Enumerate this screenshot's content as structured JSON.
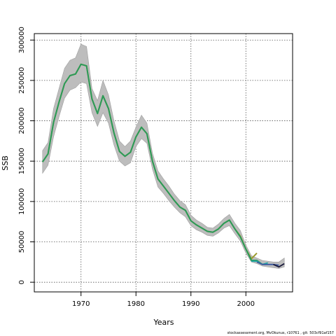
{
  "chart_data": {
    "type": "line",
    "title": "",
    "xlabel": "Years",
    "ylabel": "SSB",
    "xlim": [
      1961.5,
      2008.5
    ],
    "ylim": [
      -12000,
      308000
    ],
    "grid": true,
    "x_ticks": [
      1970,
      1980,
      1990,
      2000
    ],
    "y_ticks": [
      0,
      50000,
      100000,
      150000,
      200000,
      250000,
      300000
    ],
    "x_tick_labels": [
      "1970",
      "1980",
      "1990",
      "2000"
    ],
    "y_tick_labels": [
      "0",
      "50000",
      "100000",
      "150000",
      "200000",
      "250000",
      "300000"
    ],
    "band": {
      "x": [
        1963,
        1964,
        1965,
        1966,
        1967,
        1968,
        1969,
        1970,
        1971,
        1972,
        1973,
        1974,
        1975,
        1976,
        1977,
        1978,
        1979,
        1980,
        1981,
        1982,
        1983,
        1984,
        1985,
        1986,
        1987,
        1988,
        1989,
        1990,
        1991,
        1992,
        1993,
        1994,
        1995,
        1996,
        1997,
        1998,
        1999,
        2000,
        2001,
        2002,
        2003,
        2004,
        2005,
        2006,
        2007
      ],
      "upper": [
        163000,
        173000,
        215000,
        240000,
        265000,
        275000,
        278000,
        295000,
        292000,
        240000,
        225000,
        250000,
        232000,
        200000,
        175000,
        168000,
        175000,
        192000,
        207000,
        197000,
        160000,
        138000,
        128000,
        119000,
        109000,
        101000,
        96000,
        83000,
        77000,
        73000,
        68000,
        67000,
        72000,
        79000,
        84000,
        73000,
        64000,
        46000,
        33000,
        30000,
        27000,
        26000,
        25000,
        25000,
        30000
      ],
      "lower": [
        135000,
        145000,
        180000,
        205000,
        228000,
        238000,
        241000,
        248000,
        246000,
        210000,
        193000,
        210000,
        197000,
        170000,
        150000,
        144000,
        148000,
        168000,
        178000,
        172000,
        140000,
        118000,
        110000,
        101000,
        93000,
        86000,
        81000,
        70000,
        65000,
        62000,
        58000,
        57000,
        61000,
        67000,
        70000,
        60000,
        51000,
        36000,
        25000,
        23000,
        20000,
        19000,
        18000,
        17000,
        19000
      ]
    },
    "series": [
      {
        "color": "#9b9a2c",
        "x": [
          1963,
          1964,
          1965,
          1966,
          1967,
          1968,
          1969,
          1970,
          1971,
          1972,
          1973,
          1974,
          1975,
          1976,
          1977,
          1978,
          1979,
          1980,
          1981,
          1982,
          1983,
          1984,
          1985,
          1986,
          1987,
          1988,
          1989,
          1990,
          1991,
          1992,
          1993,
          1994,
          1995,
          1996,
          1997,
          1998,
          1999,
          2000,
          2001,
          2002
        ],
        "y": [
          149000,
          159000,
          198000,
          223000,
          246000,
          256000,
          258000,
          270000,
          268000,
          227000,
          209000,
          231000,
          215000,
          185000,
          162000,
          156000,
          161000,
          180000,
          192000,
          184000,
          150000,
          128000,
          119000,
          110000,
          101000,
          93000,
          89000,
          76000,
          71000,
          67000,
          63000,
          62000,
          66000,
          73000,
          77000,
          66000,
          57000,
          41000,
          29000,
          36000
        ]
      },
      {
        "color": "#2a9a58",
        "x": [
          1963,
          1964,
          1965,
          1966,
          1967,
          1968,
          1969,
          1970,
          1971,
          1972,
          1973,
          1974,
          1975,
          1976,
          1977,
          1978,
          1979,
          1980,
          1981,
          1982,
          1983,
          1984,
          1985,
          1986,
          1987,
          1988,
          1989,
          1990,
          1991,
          1992,
          1993,
          1994,
          1995,
          1996,
          1997,
          1998,
          1999,
          2000,
          2001,
          2002,
          2003
        ],
        "y": [
          149000,
          159000,
          198000,
          223000,
          246000,
          256000,
          258000,
          270000,
          268000,
          227000,
          209000,
          231000,
          215000,
          185000,
          162000,
          156000,
          161000,
          180000,
          192000,
          184000,
          150000,
          128000,
          119000,
          110000,
          101000,
          93000,
          89000,
          76000,
          71000,
          67000,
          63000,
          62000,
          66000,
          73000,
          77000,
          66000,
          56000,
          41000,
          27000,
          27000,
          22000
        ]
      },
      {
        "color": "#22a5a5",
        "x": [
          2001,
          2002,
          2003,
          2004
        ],
        "y": [
          26000,
          26000,
          22000,
          24000
        ]
      },
      {
        "color": "#3b5aa0",
        "x": [
          2002,
          2003,
          2004,
          2005,
          2006
        ],
        "y": [
          25000,
          22000,
          22000,
          22000,
          21000
        ]
      },
      {
        "color": "#1a1a3c",
        "x": [
          2005,
          2006,
          2007
        ],
        "y": [
          22000,
          19000,
          23000
        ]
      }
    ]
  },
  "footer": "stockassessment.org, MvOkunus, r10761 , git: 503cf91af157"
}
